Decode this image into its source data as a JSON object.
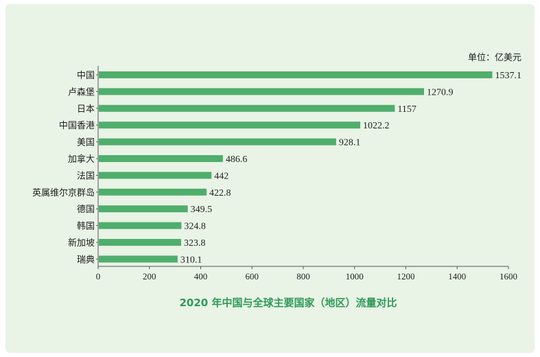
{
  "chart_data": {
    "type": "bar",
    "orientation": "horizontal",
    "title": "2020 年中国与全球主要国家（地区）流量对比",
    "unit": "单位：亿美元",
    "categories": [
      "中国",
      "卢森堡",
      "日本",
      "中国香港",
      "美国",
      "加拿大",
      "法国",
      "英属维尔京群岛",
      "德国",
      "韩国",
      "新加坡",
      "瑞典"
    ],
    "values": [
      1537.1,
      1270.9,
      1157,
      1022.2,
      928.1,
      486.6,
      442,
      422.8,
      349.5,
      324.8,
      323.8,
      310.1
    ],
    "value_labels": [
      "1537.1",
      "1270.9",
      "1157",
      "1022.2",
      "928.1",
      "486.6",
      "442",
      "422.8",
      "349.5",
      "324.8",
      "323.8",
      "310.1"
    ],
    "xlim": [
      0,
      1600
    ],
    "xticks": [
      0,
      200,
      400,
      600,
      800,
      1000,
      1200,
      1400,
      1600
    ],
    "grid": false,
    "bar_color": "#4fae6c",
    "title_color": "#2e9a57",
    "background_color": "#e9f3e6"
  }
}
